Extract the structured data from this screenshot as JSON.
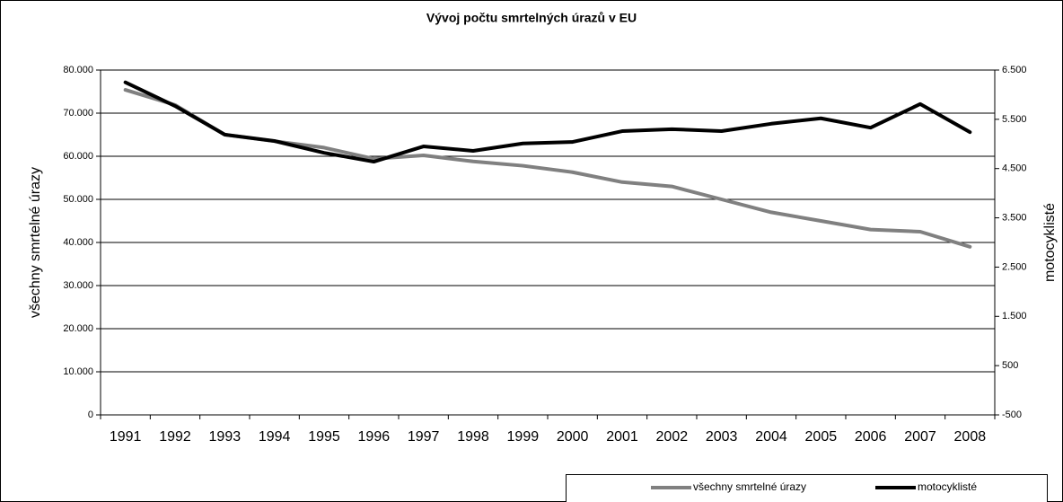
{
  "chart_data": {
    "type": "line",
    "title": "Vývoj počtu smrtelných úrazů v EU",
    "ylabel": "všechny smrtelné úrazy",
    "y2label": "motocyklisté",
    "categories": [
      "1991",
      "1992",
      "1993",
      "1994",
      "1995",
      "1996",
      "1997",
      "1998",
      "1999",
      "2000",
      "2001",
      "2002",
      "2003",
      "2004",
      "2005",
      "2006",
      "2007",
      "2008"
    ],
    "series": [
      {
        "name": "všechny smrtelné úrazy",
        "color": "#808080",
        "axis": "y",
        "values": [
          75400,
          71900,
          65000,
          63500,
          62000,
          59400,
          60200,
          58800,
          57800,
          56300,
          54000,
          53000,
          50000,
          47000,
          45000,
          43000,
          42500,
          39000
        ]
      },
      {
        "name": "motocyklisté",
        "color": "#000000",
        "axis": "y2",
        "values": [
          6250,
          5770,
          5190,
          5060,
          4820,
          4640,
          4950,
          4860,
          5010,
          5040,
          5260,
          5300,
          5260,
          5410,
          5520,
          5330,
          5810,
          5240
        ]
      }
    ],
    "ylim": [
      0,
      80000
    ],
    "yticks": [
      0,
      {
        "value": 10000,
        "label": "10.000"
      },
      {
        "value": 20000,
        "label": "20.000"
      },
      {
        "value": 30000,
        "label": "30.000"
      },
      {
        "value": 40000,
        "label": "40.000"
      },
      {
        "value": 50000,
        "label": "50.000"
      },
      {
        "value": 60000,
        "label": "60.000"
      },
      {
        "value": 70000,
        "label": "70.000"
      },
      {
        "value": 80000,
        "label": "80.000"
      }
    ],
    "y2lim": [
      -500,
      6500
    ],
    "y2ticks": [
      -500,
      500,
      {
        "value": 1500,
        "label": "1.500"
      },
      {
        "value": 2500,
        "label": "2.500"
      },
      {
        "value": 3500,
        "label": "3.500"
      },
      {
        "value": 4500,
        "label": "4.500"
      },
      {
        "value": 5500,
        "label": "5.500"
      },
      {
        "value": 6500,
        "label": "6.500"
      }
    ],
    "grid": true,
    "legend": "bottom-right"
  }
}
